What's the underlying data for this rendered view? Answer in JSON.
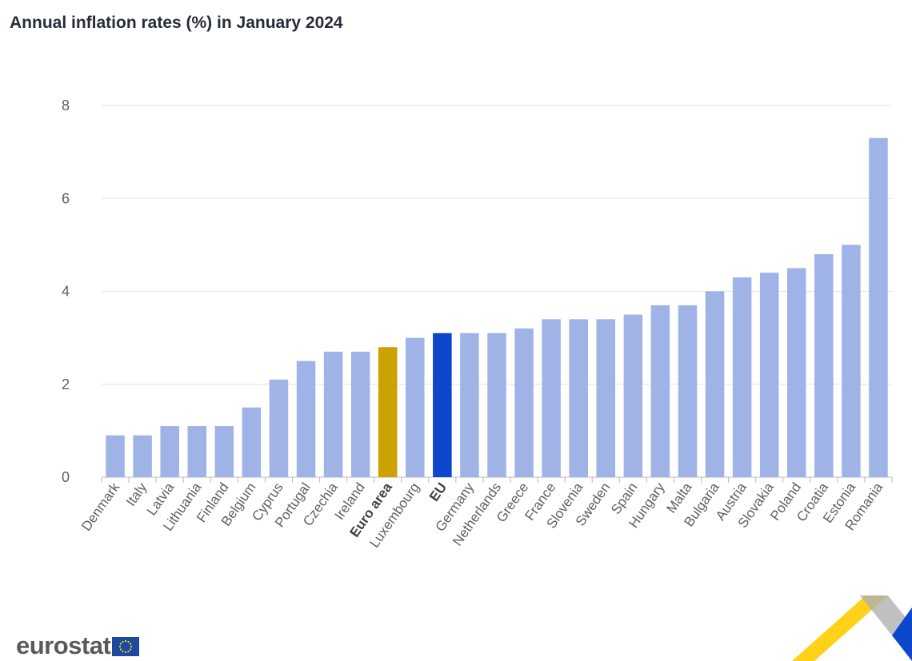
{
  "title": "Annual inflation rates (%) in January 2024",
  "logo": {
    "text": "eurostat",
    "icon": "eu-flag-icon"
  },
  "colors": {
    "default": "#a0b3e6",
    "euro_area": "#cca200",
    "eu": "#0d47cc"
  },
  "chart_data": {
    "type": "bar",
    "title": "Annual inflation rates (%) in January 2024",
    "xlabel": "",
    "ylabel": "",
    "ylim": [
      0,
      8
    ],
    "yticks": [
      0,
      2,
      4,
      6,
      8
    ],
    "grid": true,
    "legend": "none",
    "categories": [
      "Denmark",
      "Italy",
      "Latvia",
      "Lithuania",
      "Finland",
      "Belgium",
      "Cyprus",
      "Portugal",
      "Czechia",
      "Ireland",
      "Euro area",
      "Luxembourg",
      "EU",
      "Germany",
      "Netherlands",
      "Greece",
      "France",
      "Slovenia",
      "Sweden",
      "Spain",
      "Hungary",
      "Malta",
      "Bulgaria",
      "Austria",
      "Slovakia",
      "Poland",
      "Croatia",
      "Estonia",
      "Romania"
    ],
    "values": [
      0.9,
      0.9,
      1.1,
      1.1,
      1.1,
      1.5,
      2.1,
      2.5,
      2.7,
      2.7,
      2.8,
      3.0,
      3.1,
      3.1,
      3.1,
      3.2,
      3.4,
      3.4,
      3.4,
      3.5,
      3.7,
      3.7,
      4.0,
      4.3,
      4.4,
      4.5,
      4.8,
      5.0,
      7.3
    ],
    "highlight": {
      "Euro area": "euro_area",
      "EU": "eu"
    },
    "bold_labels": [
      "Euro area",
      "EU"
    ]
  }
}
